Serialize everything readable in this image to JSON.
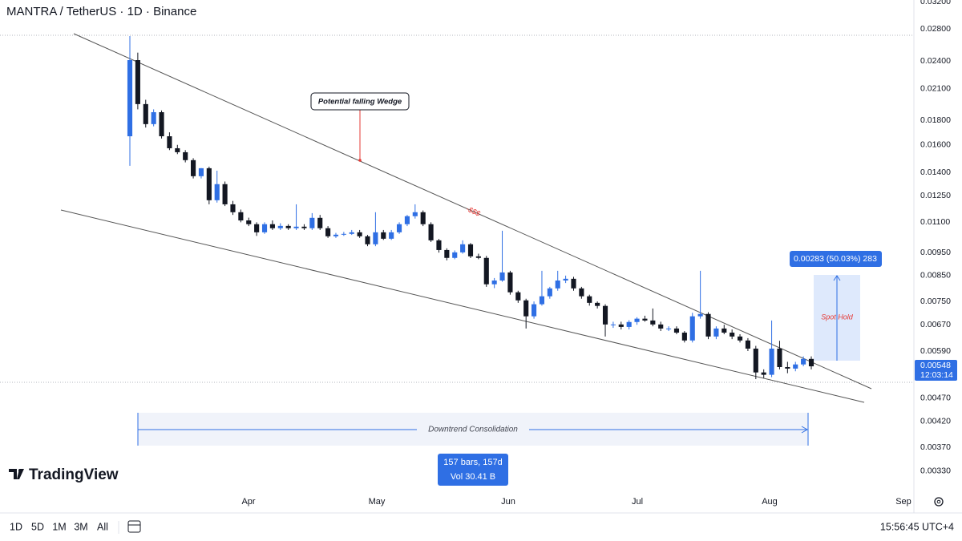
{
  "chart_data": {
    "type": "candlestick",
    "title": "MANTRA / TetherUS · 1D · Binance",
    "up_color": "#2f6fe4",
    "down_color": "#131722",
    "log": true,
    "grid": false,
    "ylim": [
      0.00297,
      0.03225
    ],
    "yticks": [
      {
        "value": 0.032,
        "label": "0.03200"
      },
      {
        "value": 0.028,
        "label": "0.02800"
      },
      {
        "value": 0.024,
        "label": "0.02400"
      },
      {
        "value": 0.021,
        "label": "0.02100"
      },
      {
        "value": 0.018,
        "label": "0.01800"
      },
      {
        "value": 0.016,
        "label": "0.01600"
      },
      {
        "value": 0.014,
        "label": "0.01400"
      },
      {
        "value": 0.0125,
        "label": "0.01250"
      },
      {
        "value": 0.011,
        "label": "0.01100"
      },
      {
        "value": 0.0095,
        "label": "0.00950"
      },
      {
        "value": 0.0085,
        "label": "0.00850"
      },
      {
        "value": 0.0075,
        "label": "0.00750"
      },
      {
        "value": 0.0067,
        "label": "0.00670"
      },
      {
        "value": 0.0059,
        "label": "0.00590"
      },
      {
        "value": 0.0047,
        "label": "0.00470"
      },
      {
        "value": 0.0042,
        "label": "0.00420"
      },
      {
        "value": 0.0037,
        "label": "0.00370"
      },
      {
        "value": 0.0033,
        "label": "0.00330"
      }
    ],
    "month_labels": [
      "Apr",
      "May",
      "Jun",
      "Jul",
      "Aug",
      "Sep"
    ],
    "open": [
      0.01668,
      0.02411,
      0.01949,
      0.01769,
      0.01874,
      0.01668,
      0.01574,
      0.01544,
      0.01486,
      0.01375,
      0.01429,
      0.01224,
      0.01323,
      0.012,
      0.01155,
      0.0111,
      0.0109,
      0.01048,
      0.0109,
      0.01069,
      0.01081,
      0.01069,
      0.01077,
      0.01069,
      0.01124,
      0.01069,
      0.01028,
      0.01036,
      0.0104,
      0.01048,
      0.01028,
      0.00989,
      0.01048,
      0.01016,
      0.01048,
      0.0109,
      0.01133,
      0.01155,
      0.0109,
      0.01008,
      0.00962,
      0.00926,
      0.00951,
      0.00989,
      0.00933,
      0.00926,
      0.00815,
      0.0083,
      0.00863,
      0.00784,
      0.00754,
      0.00698,
      0.0074,
      0.00769,
      0.00799,
      0.0083,
      0.00837,
      0.00799,
      0.00769,
      0.00745,
      0.00734,
      0.00671,
      0.00671,
      0.00663,
      0.00679,
      0.0069,
      0.00684,
      0.00671,
      0.00658,
      0.00658,
      0.00645,
      0.00621,
      0.00698,
      0.00706,
      0.00633,
      0.00658,
      0.00645,
      0.00633,
      0.00621,
      0.00597,
      0.00532,
      0.00526,
      0.00597,
      0.00546,
      0.00542,
      0.00553,
      0.00568
    ],
    "high": [
      0.02709,
      0.025,
      0.0199,
      0.019,
      0.0189,
      0.017,
      0.016,
      0.0156,
      0.015,
      0.0143,
      0.0144,
      0.01412,
      0.0134,
      0.0122,
      0.0117,
      0.01125,
      0.011,
      0.011,
      0.0111,
      0.01095,
      0.0109,
      0.012,
      0.0109,
      0.0115,
      0.0114,
      0.0108,
      0.01045,
      0.0105,
      0.0106,
      0.0106,
      0.01035,
      0.01155,
      0.0106,
      0.0106,
      0.011,
      0.0114,
      0.012,
      0.01165,
      0.011,
      0.01015,
      0.0097,
      0.0096,
      0.01008,
      0.00995,
      0.00945,
      0.00935,
      0.0084,
      0.01056,
      0.0087,
      0.0079,
      0.0076,
      0.0075,
      0.0087,
      0.00805,
      0.0087,
      0.0085,
      0.00845,
      0.00805,
      0.00775,
      0.0075,
      0.0074,
      0.0068,
      0.0068,
      0.00685,
      0.00695,
      0.007,
      0.00725,
      0.0068,
      0.00665,
      0.00665,
      0.0065,
      0.0071,
      0.0087,
      0.00712,
      0.00665,
      0.0067,
      0.00655,
      0.0064,
      0.00628,
      0.00605,
      0.0054,
      0.00684,
      0.0062,
      0.0056,
      0.0056,
      0.00575,
      0.00575
    ],
    "low": [
      0.01446,
      0.019,
      0.0174,
      0.0175,
      0.0165,
      0.0156,
      0.0153,
      0.0147,
      0.0136,
      0.0136,
      0.012,
      0.0121,
      0.0119,
      0.0114,
      0.011,
      0.0108,
      0.0103,
      0.0104,
      0.0106,
      0.0106,
      0.0106,
      0.0106,
      0.0106,
      0.0106,
      0.0106,
      0.0102,
      0.0102,
      0.0103,
      0.01035,
      0.0102,
      0.0098,
      0.0098,
      0.0101,
      0.0101,
      0.0104,
      0.0108,
      0.0112,
      0.0108,
      0.01,
      0.0095,
      0.00915,
      0.0092,
      0.00945,
      0.00925,
      0.0092,
      0.00805,
      0.008,
      0.00825,
      0.00775,
      0.00745,
      0.00658,
      0.0069,
      0.00735,
      0.0076,
      0.0079,
      0.0082,
      0.0079,
      0.0076,
      0.00735,
      0.00725,
      0.00633,
      0.0066,
      0.00655,
      0.00655,
      0.0067,
      0.0068,
      0.00665,
      0.0065,
      0.0065,
      0.0064,
      0.00615,
      0.00615,
      0.0069,
      0.00625,
      0.00625,
      0.0064,
      0.00625,
      0.00615,
      0.0059,
      0.00515,
      0.00518,
      0.0052,
      0.0054,
      0.0053,
      0.00535,
      0.00548,
      0.0054
    ],
    "close": [
      0.02411,
      0.01949,
      0.01769,
      0.01874,
      0.01668,
      0.01574,
      0.01544,
      0.01486,
      0.01375,
      0.01429,
      0.01224,
      0.01323,
      0.012,
      0.01155,
      0.0111,
      0.0109,
      0.01048,
      0.0109,
      0.01069,
      0.01081,
      0.01069,
      0.01077,
      0.01069,
      0.01124,
      0.01069,
      0.01028,
      0.01036,
      0.0104,
      0.01048,
      0.01028,
      0.00989,
      0.01048,
      0.01016,
      0.01048,
      0.0109,
      0.01133,
      0.01155,
      0.0109,
      0.01008,
      0.00962,
      0.00926,
      0.00951,
      0.00989,
      0.00933,
      0.00926,
      0.00815,
      0.0083,
      0.00863,
      0.00784,
      0.00754,
      0.00698,
      0.0074,
      0.00769,
      0.00799,
      0.0083,
      0.00837,
      0.00799,
      0.00769,
      0.00745,
      0.00734,
      0.00671,
      0.00671,
      0.00663,
      0.00679,
      0.0069,
      0.00684,
      0.00671,
      0.00658,
      0.00658,
      0.00645,
      0.00621,
      0.00698,
      0.00706,
      0.00633,
      0.00658,
      0.00645,
      0.00633,
      0.00621,
      0.00597,
      0.00532,
      0.00526,
      0.00597,
      0.00546,
      0.00542,
      0.00553,
      0.00568,
      0.00548
    ],
    "last_price": {
      "value": 0.00548,
      "label": "0.00548"
    },
    "countdown": "12:03:14",
    "annotations": {
      "wedge": "Potential falling Wedge",
      "money": "-$$$",
      "spot_hold": "Spot Hold",
      "measure": "0.00283 (50.03%) 283",
      "range": "Downtrend Consolidation",
      "bars": "157 bars, 157d",
      "vol": "Vol 30.41 B"
    }
  },
  "logo": "TradingView",
  "toolbar": {
    "ranges": [
      "1D",
      "5D",
      "1M",
      "3M",
      "All"
    ],
    "clock": "15:56:45 UTC+4"
  }
}
